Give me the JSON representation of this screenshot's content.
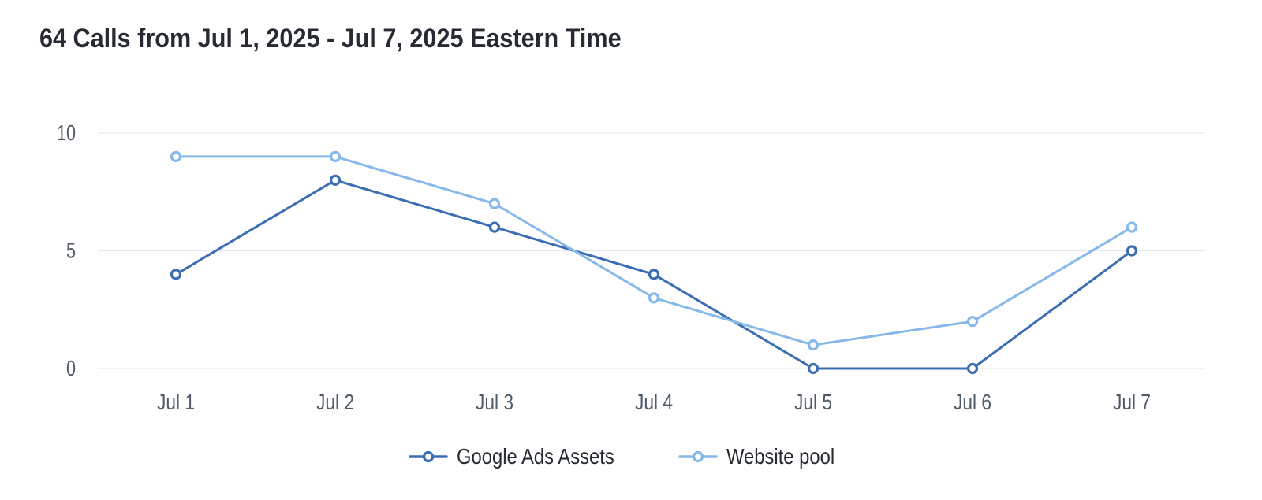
{
  "chart_data": {
    "type": "line",
    "title": "64 Calls from Jul 1, 2025 - Jul 7, 2025 Eastern Time",
    "total_calls": 64,
    "date_range": "Jul 1, 2025 - Jul 7, 2025",
    "timezone": "Eastern Time",
    "x": [
      "Jul 1",
      "Jul 2",
      "Jul 3",
      "Jul 4",
      "Jul 5",
      "Jul 6",
      "Jul 7"
    ],
    "series": [
      {
        "name": "Google Ads Assets",
        "values": [
          4,
          8,
          6,
          4,
          0,
          0,
          5
        ],
        "color": "#3B6DB3"
      },
      {
        "name": "Website pool",
        "values": [
          9,
          9,
          7,
          3,
          1,
          2,
          6
        ],
        "color": "#86B8E9"
      }
    ],
    "ylim": [
      0,
      10
    ],
    "yticks": [
      10,
      5,
      0
    ],
    "grid": true,
    "gridline_color": "#E8E9ED",
    "axis_label_color": "#4F5B69",
    "marker_style": "open-circle",
    "legend_position": "bottom",
    "xlabel": "",
    "ylabel": ""
  }
}
